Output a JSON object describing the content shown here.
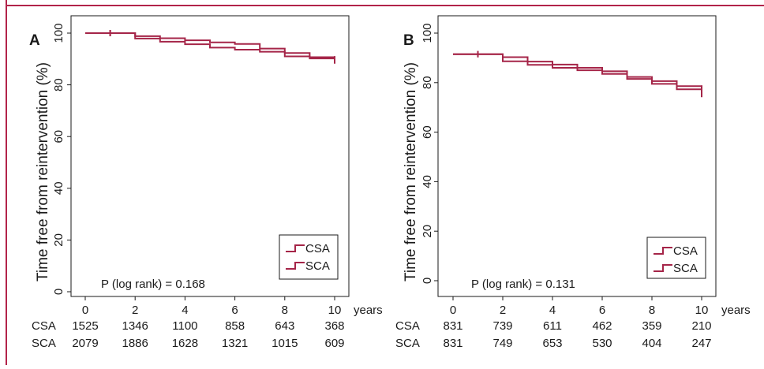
{
  "colors": {
    "frame": "#b2234a",
    "series": "#a52548",
    "axis": "#1a1a1a",
    "background": "#ffffff"
  },
  "chart_data": [
    {
      "panel_label": "A",
      "type": "line",
      "ylabel": "Time free from reintervention (%)",
      "xlabel": "",
      "x_unit": "years",
      "xlim": [
        0,
        10
      ],
      "ylim": [
        0,
        100
      ],
      "x_ticks": [
        0,
        2,
        4,
        6,
        8,
        10
      ],
      "y_ticks": [
        0,
        20,
        40,
        60,
        80,
        100
      ],
      "annotation": "P (log rank) = 0.168",
      "legend_position": "bottom-right",
      "series": [
        {
          "name": "CSA",
          "x": [
            0,
            1,
            2,
            3,
            4,
            5,
            6,
            7,
            8,
            9,
            10
          ],
          "y": [
            100,
            100,
            98.8,
            98,
            97.2,
            96.4,
            95.8,
            94,
            92.3,
            90.7,
            89.9
          ]
        },
        {
          "name": "SCA",
          "x": [
            0,
            1,
            2,
            3,
            4,
            5,
            6,
            7,
            8,
            9,
            10
          ],
          "y": [
            100,
            100,
            97.9,
            96.7,
            95.7,
            94.4,
            93.6,
            92.8,
            91,
            90.2,
            89.4
          ]
        }
      ],
      "at_risk": {
        "rows": [
          {
            "label": "CSA",
            "values": [
              "1525",
              "1346",
              "1100",
              "858",
              "643",
              "368"
            ]
          },
          {
            "label": "SCA",
            "values": [
              "2079",
              "1886",
              "1628",
              "1321",
              "1015",
              "609"
            ]
          }
        ]
      }
    },
    {
      "panel_label": "B",
      "type": "line",
      "ylabel": "Time free from reintervention (%)",
      "xlabel": "",
      "x_unit": "years",
      "xlim": [
        0,
        10
      ],
      "ylim": [
        0,
        100
      ],
      "x_ticks": [
        0,
        2,
        4,
        6,
        8,
        10
      ],
      "y_ticks": [
        0,
        20,
        40,
        60,
        80,
        100
      ],
      "annotation": "P (log rank) = 0.131",
      "legend_position": "bottom-right",
      "series": [
        {
          "name": "CSA",
          "x": [
            0,
            1,
            2,
            3,
            4,
            5,
            6,
            7,
            8,
            9,
            10
          ],
          "y": [
            91.5,
            91.5,
            90.3,
            88.5,
            87.3,
            86,
            84.6,
            82.3,
            80.6,
            78.6,
            77.6
          ]
        },
        {
          "name": "SCA",
          "x": [
            0,
            1,
            2,
            3,
            4,
            5,
            6,
            7,
            8,
            9,
            10
          ],
          "y": [
            91.5,
            91.5,
            88.6,
            87.2,
            86,
            85,
            83.5,
            81.5,
            79.5,
            77.3,
            75.4
          ]
        }
      ],
      "at_risk": {
        "rows": [
          {
            "label": "CSA",
            "values": [
              "831",
              "739",
              "611",
              "462",
              "359",
              "210"
            ]
          },
          {
            "label": "SCA",
            "values": [
              "831",
              "749",
              "653",
              "530",
              "404",
              "247"
            ]
          }
        ]
      }
    }
  ]
}
